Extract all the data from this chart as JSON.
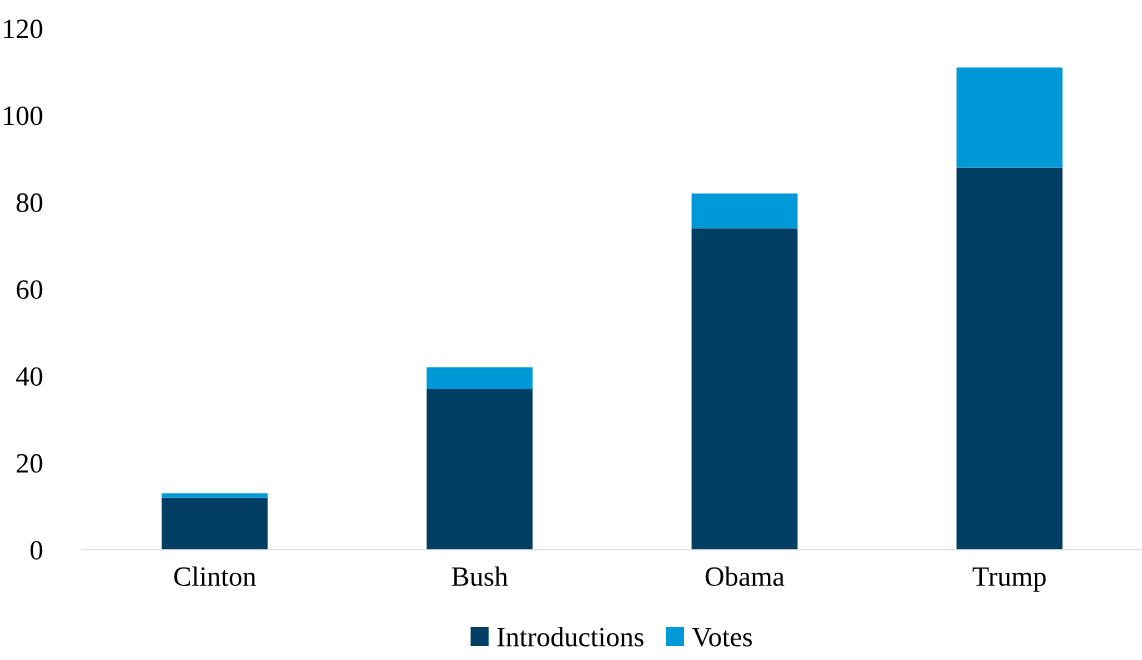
{
  "chart_data": {
    "type": "bar",
    "stacked": true,
    "categories": [
      "Clinton",
      "Bush",
      "Obama",
      "Trump"
    ],
    "series": [
      {
        "name": "Introductions",
        "color": "#003f63",
        "values": [
          12,
          37,
          74,
          88
        ]
      },
      {
        "name": "Votes",
        "color": "#0099d8",
        "values": [
          1,
          5,
          8,
          23
        ]
      }
    ],
    "ylim": [
      0,
      120
    ],
    "yticks": [
      0,
      20,
      40,
      60,
      80,
      100,
      120
    ],
    "grid": false,
    "legend": "bottom"
  }
}
